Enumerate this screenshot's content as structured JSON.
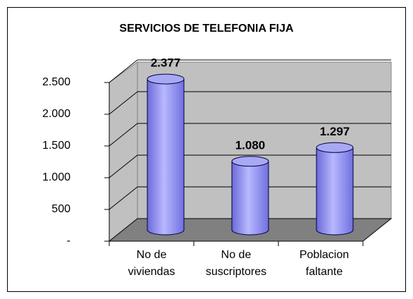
{
  "chart_data": {
    "type": "bar3d",
    "title": "SERVICIOS DE TELEFONIA FIJA",
    "categories": [
      "No de viviendas",
      "No de suscriptores",
      "Poblacion faltante"
    ],
    "values": [
      2377,
      1080,
      1297
    ],
    "value_labels": [
      "2.377",
      "1.080",
      "1.297"
    ],
    "color": "#9999ff",
    "ylim": [
      0,
      2500
    ],
    "yticks": [
      {
        "value": 0,
        "label": "-"
      },
      500,
      {
        "value": 1000,
        "label": "1.000"
      },
      {
        "value": 1500,
        "label": "1.500"
      },
      {
        "value": 2000,
        "label": "2.000"
      },
      {
        "value": 2500,
        "label": "2.500"
      }
    ],
    "grid": true
  }
}
